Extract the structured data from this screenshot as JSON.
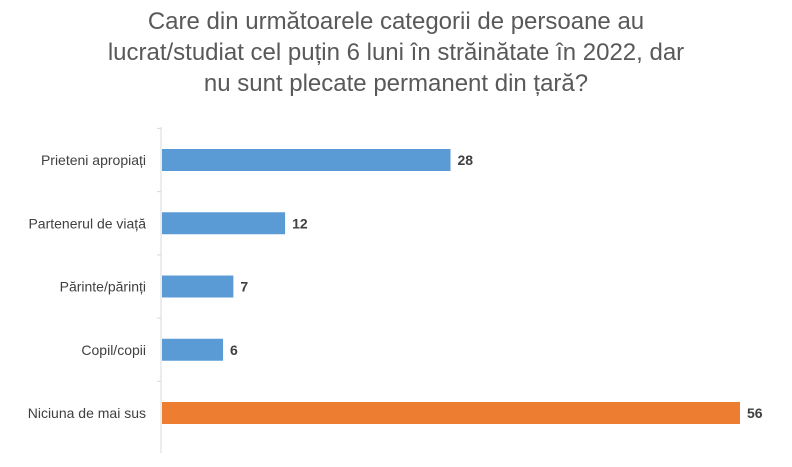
{
  "chart_data": {
    "type": "bar",
    "orientation": "horizontal",
    "title_lines": [
      "Care din următoarele categorii de persoane au",
      "lucrat/studiat cel puțin 6 luni în străinătate în 2022, dar",
      "nu sunt plecate permanent din țară?"
    ],
    "categories": [
      "Prieteni apropiați",
      "Partenerul de viață",
      "Părinte/părinți",
      "Copil/copii",
      "Niciuna de mai sus"
    ],
    "values": [
      28,
      12,
      7,
      6,
      56
    ],
    "data_labels": [
      "28",
      "12",
      "7",
      "6",
      "56"
    ],
    "colors": [
      "#5b9bd5",
      "#5b9bd5",
      "#5b9bd5",
      "#5b9bd5",
      "#ed7d31"
    ],
    "xlim": [
      0,
      56
    ],
    "grid": false,
    "legend": "none",
    "xlabel": "",
    "ylabel": ""
  }
}
